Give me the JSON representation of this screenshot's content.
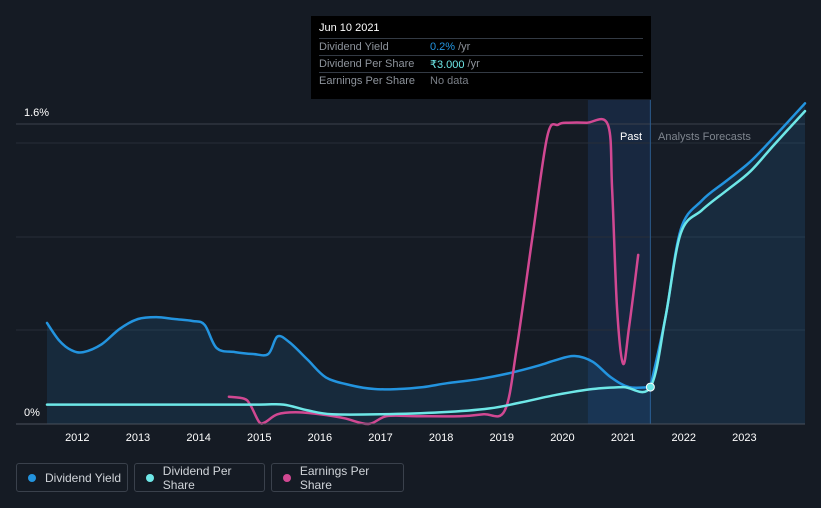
{
  "tooltip": {
    "date": "Jun 10 2021",
    "rows": [
      {
        "label": "Dividend Yield",
        "value": "0.2%",
        "unit": "/yr"
      },
      {
        "label": "Dividend Per Share",
        "value": "₹3.000",
        "unit": "/yr"
      },
      {
        "label": "Earnings Per Share",
        "value": "No data",
        "unit": ""
      }
    ]
  },
  "legend": [
    {
      "label": "Dividend Yield",
      "color": "#2394df"
    },
    {
      "label": "Dividend Per Share",
      "color": "#6ee7e7"
    },
    {
      "label": "Earnings Per Share",
      "color": "#d14892"
    }
  ],
  "chart_data": {
    "type": "line",
    "title": "",
    "xlabel": "",
    "ylabel": "",
    "y_tick_labels": [
      "1.6%",
      "0%"
    ],
    "ylim": [
      0,
      1.6
    ],
    "xlim": [
      2011.5,
      2024.0
    ],
    "x_ticks": [
      2012,
      2013,
      2014,
      2015,
      2016,
      2017,
      2018,
      2019,
      2020,
      2021,
      2022,
      2023
    ],
    "past_label": "Past",
    "forecast_label": "Analysts Forecasts",
    "past_shade_range": [
      2020.42,
      2021.45
    ],
    "forecast_start": 2021.45,
    "series": [
      {
        "name": "Dividend Yield",
        "color": "#2394df",
        "area": true,
        "x": [
          2011.5,
          2011.7,
          2011.9,
          2012.1,
          2012.4,
          2012.7,
          2013.0,
          2013.3,
          2013.6,
          2013.9,
          2014.1,
          2014.3,
          2014.6,
          2014.9,
          2015.15,
          2015.3,
          2015.5,
          2015.8,
          2016.1,
          2016.5,
          2016.9,
          2017.3,
          2017.7,
          2018.1,
          2018.6,
          2019.1,
          2019.6,
          2019.9,
          2020.2,
          2020.5,
          2020.8,
          2021.1,
          2021.45
        ],
        "values": [
          0.52,
          0.43,
          0.38,
          0.37,
          0.41,
          0.49,
          0.54,
          0.55,
          0.54,
          0.53,
          0.51,
          0.39,
          0.37,
          0.36,
          0.36,
          0.45,
          0.42,
          0.33,
          0.24,
          0.2,
          0.18,
          0.18,
          0.19,
          0.21,
          0.23,
          0.26,
          0.3,
          0.33,
          0.35,
          0.32,
          0.24,
          0.19,
          0.19
        ]
      },
      {
        "name": "Dividend Yield (forecast)",
        "color": "#2394df",
        "area": true,
        "x": [
          2021.45,
          2021.7,
          2021.95,
          2022.3,
          2022.7,
          2023.1,
          2023.5,
          2024.0
        ],
        "values": [
          0.19,
          0.55,
          1.0,
          1.15,
          1.25,
          1.35,
          1.48,
          1.65
        ]
      },
      {
        "name": "Dividend Per Share",
        "color": "#6ee7e7",
        "x": [
          2011.5,
          2012.0,
          2013.0,
          2014.0,
          2015.0,
          2015.4,
          2015.8,
          2016.2,
          2017.0,
          2018.0,
          2018.8,
          2019.3,
          2019.9,
          2020.5,
          2021.0,
          2021.45,
          2021.7,
          2021.95,
          2022.3,
          2022.7,
          2023.1,
          2023.5,
          2024.0
        ],
        "values": [
          0.1,
          0.1,
          0.1,
          0.1,
          0.1,
          0.1,
          0.07,
          0.05,
          0.05,
          0.06,
          0.08,
          0.11,
          0.15,
          0.18,
          0.19,
          0.19,
          0.55,
          0.98,
          1.1,
          1.2,
          1.3,
          1.44,
          1.61
        ]
      },
      {
        "name": "Earnings Per Share",
        "color": "#d14892",
        "x": [
          2014.5,
          2014.75,
          2014.85,
          2015.0,
          2015.1,
          2015.3,
          2015.6,
          2016.0,
          2016.4,
          2016.8,
          2017.1,
          2017.6,
          2018.3,
          2018.7,
          2019.05,
          2019.25,
          2019.5,
          2019.75,
          2019.93,
          2020.1,
          2020.4,
          2020.75,
          2020.82,
          2020.9,
          2021.0,
          2021.1,
          2021.25
        ],
        "values": [
          0.14,
          0.13,
          0.1,
          0.01,
          0.01,
          0.05,
          0.06,
          0.05,
          0.03,
          0.0,
          0.04,
          0.04,
          0.04,
          0.05,
          0.07,
          0.4,
          0.95,
          1.48,
          1.54,
          1.55,
          1.55,
          1.54,
          1.2,
          0.6,
          0.31,
          0.5,
          0.87
        ]
      }
    ],
    "marker": {
      "x": 2021.45,
      "value": 0.19
    }
  }
}
